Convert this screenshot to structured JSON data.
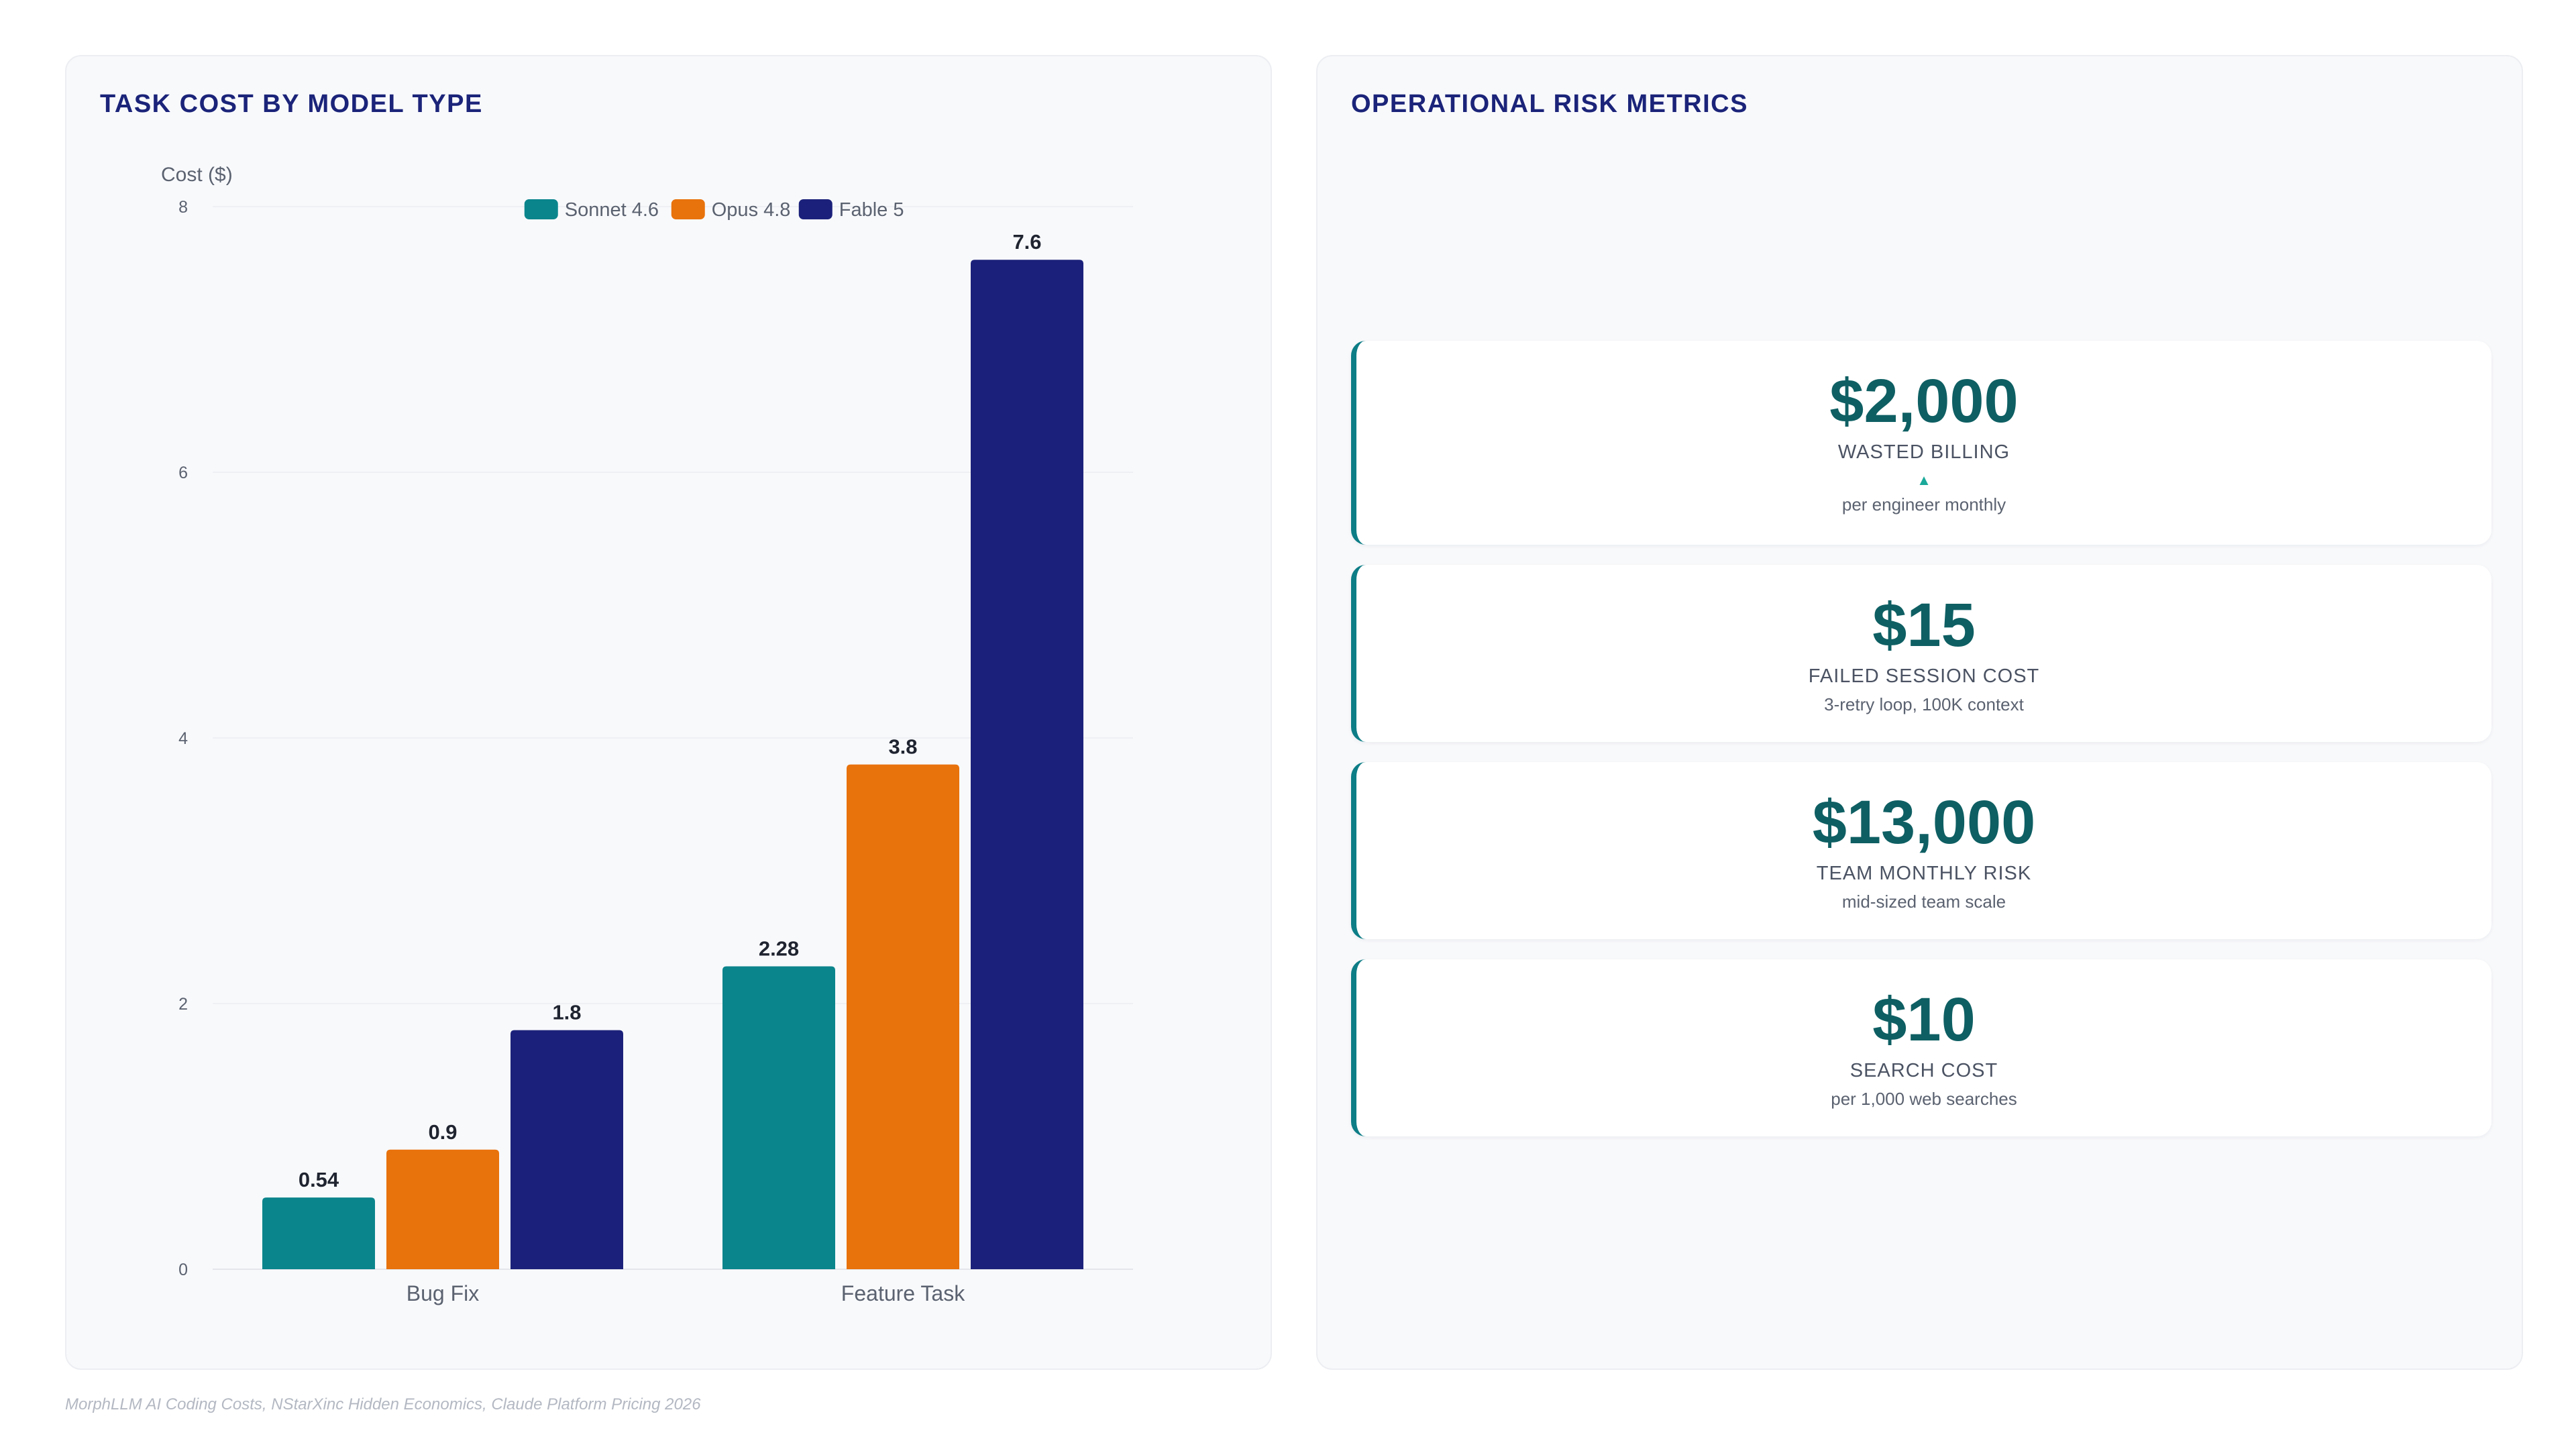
{
  "chart_panel": {
    "title": "TASK COST BY MODEL TYPE"
  },
  "metrics_panel": {
    "title": "OPERATIONAL RISK METRICS",
    "cards": [
      {
        "value": "$2,000",
        "label": "WASTED BILLING",
        "trend_icon": "▲",
        "sub": "per engineer monthly"
      },
      {
        "value": "$15",
        "label": "FAILED SESSION COST",
        "sub": "3-retry loop, 100K context"
      },
      {
        "value": "$13,000",
        "label": "TEAM MONTHLY RISK",
        "sub": "mid-sized team scale"
      },
      {
        "value": "$10",
        "label": "SEARCH COST",
        "sub": "per 1,000 web searches"
      }
    ]
  },
  "source": "MorphLLM AI Coding Costs, NStarXinc Hidden Economics, Claude Platform Pricing 2026",
  "chart_data": {
    "type": "bar",
    "title": "TASK COST BY MODEL TYPE",
    "xlabel": "",
    "ylabel": "Cost ($)",
    "ylim": [
      0,
      8
    ],
    "yticks": [
      0,
      2,
      4,
      6,
      8
    ],
    "grid": true,
    "legend_position": "top-center",
    "categories": [
      "Bug Fix",
      "Feature Task"
    ],
    "series": [
      {
        "name": "Sonnet 4.6",
        "color": "#0b858c",
        "values": [
          0.54,
          2.28
        ]
      },
      {
        "name": "Opus 4.8",
        "color": "#e8720c",
        "values": [
          0.9,
          3.8
        ]
      },
      {
        "name": "Fable 5",
        "color": "#1b217a",
        "values": [
          1.8,
          7.6
        ]
      }
    ]
  }
}
